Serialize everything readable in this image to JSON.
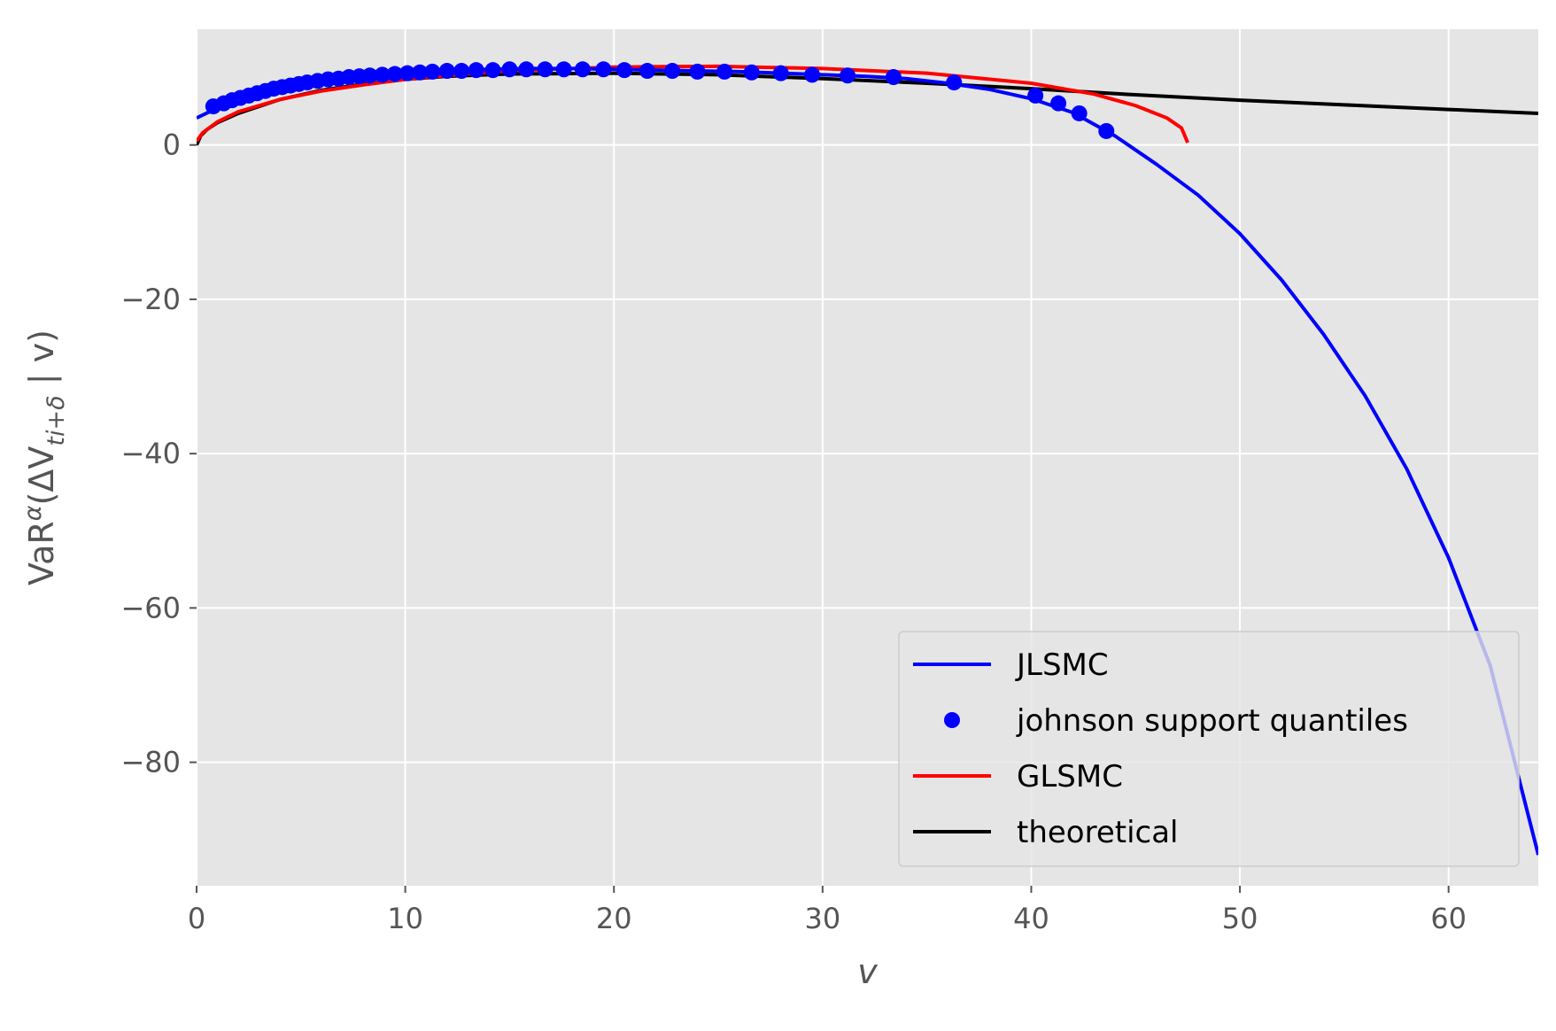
{
  "chart_data": {
    "type": "line",
    "title": "",
    "xlabel": "v",
    "ylabel": "VaR^α(ΔV_{t_i+δ} | v)",
    "xlim": [
      0,
      64.3
    ],
    "ylim": [
      -96,
      15
    ],
    "grid": true,
    "legend_position": "lower-right",
    "x_ticks": [
      0,
      10,
      20,
      30,
      40,
      50,
      60
    ],
    "x_tick_labels": [
      "0",
      "10",
      "20",
      "30",
      "40",
      "50",
      "60"
    ],
    "y_ticks": [
      0,
      -20,
      -40,
      -60,
      -80
    ],
    "y_tick_labels": [
      "0",
      "−20",
      "−40",
      "−60",
      "−80"
    ],
    "legend": {
      "jlsmc": "JLSMC",
      "points": "johnson support quantiles",
      "glsmc": "GLSMC",
      "theory": "theoretical"
    },
    "colors": {
      "jlsmc": "#0000ff",
      "glsmc": "#ff0000",
      "theory": "#000000",
      "points": "#0000ff",
      "background": "#e5e5e5",
      "grid": "#ffffff"
    },
    "series": [
      {
        "key": "jlsmc",
        "x": [
          0,
          1,
          2,
          3,
          4,
          5,
          6,
          8,
          10,
          12,
          14,
          16,
          18,
          20,
          22,
          24,
          26,
          28,
          30,
          32,
          34,
          36,
          38,
          40,
          42,
          44,
          46,
          48,
          50,
          52,
          54,
          56,
          58,
          60,
          62,
          64.3
        ],
        "y": [
          3.5,
          4.8,
          5.8,
          6.6,
          7.3,
          7.8,
          8.2,
          8.8,
          9.3,
          9.6,
          9.8,
          9.9,
          9.9,
          9.8,
          9.7,
          9.6,
          9.5,
          9.3,
          9.1,
          8.9,
          8.6,
          8.0,
          7.2,
          6.0,
          4.2,
          1.2,
          -2.5,
          -6.5,
          -11.5,
          -17.5,
          -24.5,
          -32.5,
          -42.0,
          -53.5,
          -67.5,
          -92.0
        ]
      },
      {
        "key": "glsmc",
        "x": [
          0,
          0.3,
          1,
          2,
          4,
          6,
          8,
          10,
          12,
          15,
          20,
          25,
          30,
          35,
          40,
          43,
          45,
          46.5,
          47.2,
          47.5
        ],
        "y": [
          0.5,
          1.6,
          3.0,
          4.3,
          5.9,
          7.0,
          7.8,
          8.5,
          9.0,
          9.6,
          10.1,
          10.2,
          9.9,
          9.3,
          8.0,
          6.6,
          5.1,
          3.5,
          2.2,
          0.3
        ]
      },
      {
        "key": "theory",
        "x": [
          0,
          0.2,
          0.5,
          1,
          2,
          4,
          6,
          8,
          10,
          12,
          15,
          20,
          25,
          30,
          35,
          40,
          45,
          50,
          55,
          60,
          64.3
        ],
        "y": [
          0,
          1.2,
          2.0,
          2.9,
          4.1,
          5.9,
          7.1,
          7.9,
          8.5,
          8.9,
          9.2,
          9.3,
          9.1,
          8.6,
          8.0,
          7.3,
          6.5,
          5.8,
          5.2,
          4.6,
          4.1
        ]
      }
    ],
    "points": {
      "key": "points",
      "x": [
        0.8,
        1.3,
        1.7,
        2.1,
        2.5,
        2.9,
        3.3,
        3.7,
        4.1,
        4.5,
        4.9,
        5.3,
        5.8,
        6.3,
        6.8,
        7.3,
        7.8,
        8.3,
        8.9,
        9.5,
        10.1,
        10.7,
        11.3,
        12.0,
        12.7,
        13.4,
        14.2,
        15.0,
        15.8,
        16.7,
        17.6,
        18.5,
        19.5,
        20.5,
        21.6,
        22.8,
        24.0,
        25.3,
        26.6,
        28.0,
        29.5,
        31.2,
        33.4,
        36.3,
        40.2,
        41.3,
        42.3,
        43.6
      ],
      "y": [
        5.0,
        5.4,
        5.8,
        6.1,
        6.4,
        6.7,
        7.0,
        7.3,
        7.5,
        7.7,
        7.9,
        8.1,
        8.3,
        8.5,
        8.6,
        8.8,
        8.9,
        9.0,
        9.1,
        9.2,
        9.3,
        9.4,
        9.5,
        9.6,
        9.6,
        9.7,
        9.7,
        9.8,
        9.8,
        9.8,
        9.8,
        9.8,
        9.8,
        9.7,
        9.6,
        9.6,
        9.5,
        9.5,
        9.4,
        9.3,
        9.1,
        9.0,
        8.8,
        8.1,
        6.4,
        5.4,
        4.1,
        1.8
      ]
    }
  }
}
